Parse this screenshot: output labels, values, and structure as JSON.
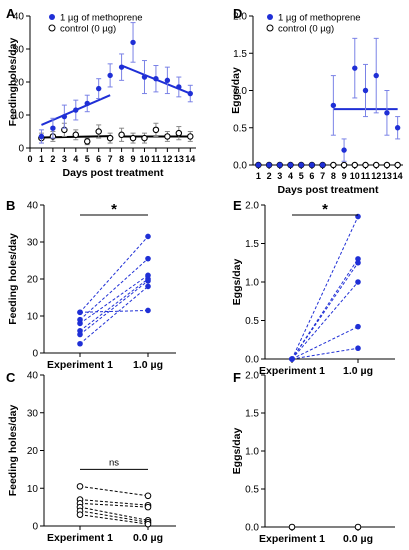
{
  "colors": {
    "treated": "#1f2fd6",
    "control": "#000000",
    "axis": "#000000"
  },
  "chart_data": [
    {
      "id": "A",
      "type": "scatter",
      "panel_label": "A",
      "xlabel": "Days post treatment",
      "ylabel": "Feedingholes/day",
      "xlim": [
        0,
        14.5
      ],
      "ylim": [
        0,
        40
      ],
      "xticks": [
        0,
        1,
        2,
        3,
        4,
        5,
        6,
        7,
        8,
        9,
        10,
        11,
        12,
        13,
        14
      ],
      "yticks": [
        0,
        10,
        20,
        30,
        40
      ],
      "legend": [
        "1 µg of methoprene",
        "control (0 µg)"
      ],
      "series": [
        {
          "name": "1 µg of methoprene",
          "style": "filled",
          "color": "#1f2fd6",
          "x": [
            1,
            2,
            3,
            4,
            5,
            6,
            7,
            8,
            9,
            10,
            11,
            12,
            13,
            14
          ],
          "y": [
            3.5,
            6,
            9.5,
            11.5,
            13.5,
            18,
            22,
            24.5,
            32,
            21.5,
            21,
            20.5,
            18.5,
            16.5
          ],
          "err": [
            2,
            3,
            3.5,
            3,
            2.5,
            3,
            3.5,
            4,
            6,
            5,
            4,
            4,
            3,
            2.5
          ]
        },
        {
          "name": "control (0 µg)",
          "style": "open",
          "color": "#000000",
          "x": [
            1,
            2,
            3,
            4,
            5,
            6,
            7,
            8,
            9,
            10,
            11,
            12,
            13,
            14
          ],
          "y": [
            3,
            3.5,
            5.5,
            4,
            2,
            5,
            3,
            4,
            3,
            3,
            5.5,
            3.5,
            4.5,
            3.5
          ],
          "err": [
            1.5,
            1.5,
            2,
            1.5,
            1,
            2,
            1.5,
            2,
            1.5,
            1.5,
            2,
            1.5,
            2,
            1.5
          ]
        }
      ],
      "fits": [
        {
          "color": "#1f2fd6",
          "x": [
            1,
            7
          ],
          "y": [
            7,
            16
          ]
        },
        {
          "color": "#1f2fd6",
          "x": [
            8,
            14
          ],
          "y": [
            25,
            16.5
          ]
        },
        {
          "color": "#000000",
          "x": [
            1,
            7
          ],
          "y": [
            3.2,
            3.6
          ]
        },
        {
          "color": "#000000",
          "x": [
            8,
            14
          ],
          "y": [
            3.5,
            3.5
          ]
        }
      ]
    },
    {
      "id": "D",
      "type": "scatter",
      "panel_label": "D",
      "xlabel": "Days post treatment",
      "ylabel": "Eggs/day",
      "xlim": [
        0.5,
        14.5
      ],
      "ylim": [
        0,
        2.0
      ],
      "xticks": [
        1,
        2,
        3,
        4,
        5,
        6,
        7,
        8,
        9,
        10,
        11,
        12,
        13,
        14
      ],
      "yticks": [
        0.0,
        0.5,
        1.0,
        1.5,
        2.0
      ],
      "legend": [
        "1 µg of methoprene",
        "control (0 µg)"
      ],
      "series": [
        {
          "name": "1 µg of methoprene",
          "style": "filled",
          "color": "#1f2fd6",
          "x": [
            1,
            2,
            3,
            4,
            5,
            6,
            7,
            8,
            9,
            10,
            11,
            12,
            13,
            14
          ],
          "y": [
            0,
            0,
            0,
            0,
            0,
            0,
            0,
            0.8,
            0.2,
            1.3,
            1.0,
            1.2,
            0.7,
            0.5
          ],
          "err": [
            0,
            0,
            0,
            0,
            0,
            0,
            0,
            0.4,
            0.15,
            0.4,
            0.35,
            0.5,
            0.3,
            0.15
          ]
        },
        {
          "name": "control (0 µg)",
          "style": "open",
          "color": "#000000",
          "x": [
            1,
            2,
            3,
            4,
            5,
            6,
            7,
            8,
            9,
            10,
            11,
            12,
            13,
            14
          ],
          "y": [
            0,
            0,
            0,
            0,
            0,
            0,
            0,
            0,
            0,
            0,
            0,
            0,
            0,
            0
          ],
          "err": [
            0,
            0,
            0,
            0,
            0,
            0,
            0,
            0,
            0,
            0,
            0,
            0,
            0,
            0
          ]
        }
      ],
      "fits": [
        {
          "color": "#1f2fd6",
          "x": [
            8,
            14
          ],
          "y": [
            0.75,
            0.75
          ]
        }
      ]
    },
    {
      "id": "B",
      "type": "paired",
      "panel_label": "B",
      "ylabel": "Feeding holes/day",
      "categories": [
        "Experiment 1",
        "1.0 µg"
      ],
      "ylim": [
        0,
        40
      ],
      "yticks": [
        0,
        10,
        20,
        30,
        40
      ],
      "style": "filled",
      "color": "#1f2fd6",
      "pairs": [
        [
          11,
          31.5
        ],
        [
          9,
          25.5
        ],
        [
          8,
          21
        ],
        [
          6,
          20
        ],
        [
          5,
          19.5
        ],
        [
          2.5,
          18
        ],
        [
          11,
          11.5
        ]
      ],
      "significance": "*"
    },
    {
      "id": "E",
      "type": "paired",
      "panel_label": "E",
      "ylabel": "Eggs/day",
      "categories": [
        "Experiment 1",
        "1.0 µg"
      ],
      "ylim": [
        0,
        2.0
      ],
      "yticks": [
        0.0,
        0.5,
        1.0,
        1.5,
        2.0
      ],
      "style": "filled",
      "color": "#1f2fd6",
      "pairs": [
        [
          0,
          1.85
        ],
        [
          0,
          1.3
        ],
        [
          0,
          1.25
        ],
        [
          0,
          1.0
        ],
        [
          0,
          0.42
        ],
        [
          0,
          0.14
        ]
      ],
      "significance": "*"
    },
    {
      "id": "C",
      "type": "paired",
      "panel_label": "C",
      "ylabel": "Feeding holes/day",
      "categories": [
        "Experiment 1",
        "0.0 µg"
      ],
      "ylim": [
        0,
        40
      ],
      "yticks": [
        0,
        10,
        20,
        30,
        40
      ],
      "style": "open",
      "color": "#000000",
      "pairs": [
        [
          10.5,
          8
        ],
        [
          7,
          5.5
        ],
        [
          6,
          5
        ],
        [
          5,
          1.5
        ],
        [
          4,
          1
        ],
        [
          3,
          0.5
        ]
      ],
      "significance": "ns"
    },
    {
      "id": "F",
      "type": "paired",
      "panel_label": "F",
      "ylabel": "Eggs/day",
      "categories": [
        "Experiment 1",
        "0.0 µg"
      ],
      "ylim": [
        0,
        2.0
      ],
      "yticks": [
        0.0,
        0.5,
        1.0,
        1.5,
        2.0
      ],
      "style": "open",
      "color": "#000000",
      "pairs": [
        [
          0,
          0
        ]
      ],
      "significance": ""
    }
  ]
}
